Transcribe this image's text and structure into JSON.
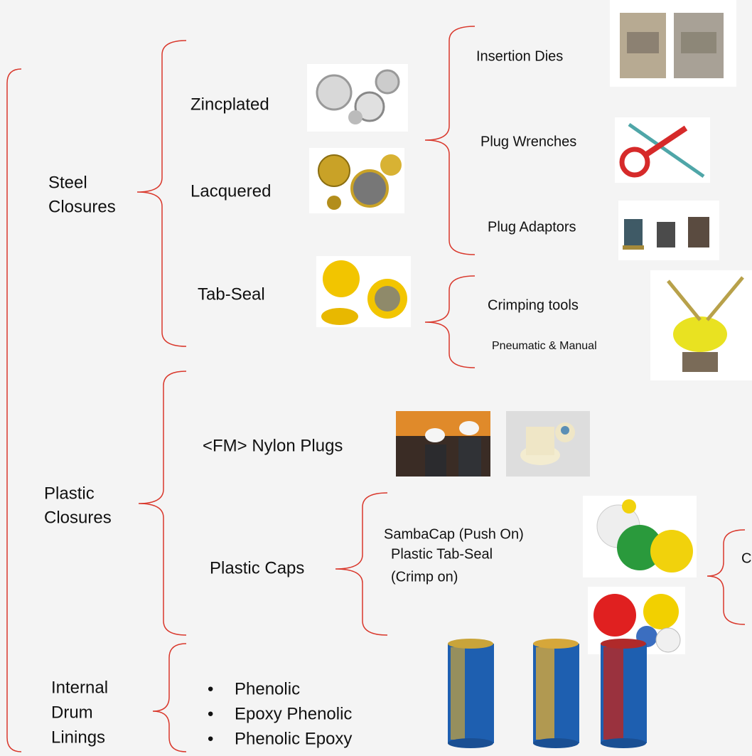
{
  "groups": [
    {
      "lines": [
        "Steel",
        "Closures"
      ]
    },
    {
      "lines": [
        "Plastic",
        "Closures"
      ]
    },
    {
      "lines": [
        "Internal",
        "Drum",
        "Linings"
      ]
    }
  ],
  "items": [
    "Zincplated",
    "Lacquered",
    "Tab-Seal",
    "<FM> Nylon Plugs",
    "Plastic Caps"
  ],
  "tools": [
    "Insertion Dies",
    "Plug Wrenches",
    "Plug Adaptors",
    "Crimping tools",
    "Pneumatic & Manual"
  ],
  "caps": [
    {
      "lines": [
        "SambaCap (Push On)"
      ]
    },
    {
      "lines": [
        "Plastic Tab-Seal",
        "(Crimp on)"
      ]
    }
  ],
  "cut_label": "C",
  "linings": [
    "Phenolic",
    "Epoxy Phenolic",
    "Phenolic Epoxy"
  ],
  "bullet": "•"
}
